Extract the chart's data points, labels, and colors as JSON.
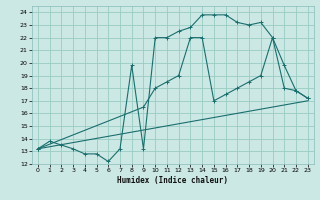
{
  "xlabel": "Humidex (Indice chaleur)",
  "bg_color": "#cce8e4",
  "grid_color": "#99ccc4",
  "line_color": "#1a6e6e",
  "xlim": [
    -0.5,
    23.5
  ],
  "ylim": [
    12,
    24.5
  ],
  "xticks": [
    0,
    1,
    2,
    3,
    4,
    5,
    6,
    7,
    8,
    9,
    10,
    11,
    12,
    13,
    14,
    15,
    16,
    17,
    18,
    19,
    20,
    21,
    22,
    23
  ],
  "yticks": [
    12,
    13,
    14,
    15,
    16,
    17,
    18,
    19,
    20,
    21,
    22,
    23,
    24
  ],
  "line1_x": [
    0,
    23
  ],
  "line1_y": [
    13.2,
    17.0
  ],
  "line2_x": [
    0,
    1,
    2,
    3,
    4,
    5,
    6,
    7,
    8,
    9,
    10,
    11,
    12,
    13,
    14,
    15,
    16,
    17,
    18,
    19,
    20,
    21,
    22,
    23
  ],
  "line2_y": [
    13.2,
    13.8,
    13.5,
    13.2,
    12.8,
    12.8,
    12.2,
    13.2,
    19.8,
    13.2,
    22.0,
    22.0,
    22.5,
    22.8,
    23.8,
    23.8,
    23.8,
    23.2,
    23.0,
    23.2,
    22.0,
    19.8,
    17.8,
    17.2
  ],
  "line3_x": [
    0,
    9,
    10,
    11,
    12,
    13,
    14,
    15,
    16,
    17,
    18,
    19,
    20,
    21,
    22,
    23
  ],
  "line3_y": [
    13.2,
    16.5,
    18.0,
    18.5,
    19.0,
    22.0,
    22.0,
    17.0,
    17.5,
    18.0,
    18.5,
    19.0,
    22.0,
    18.0,
    17.8,
    17.2
  ]
}
